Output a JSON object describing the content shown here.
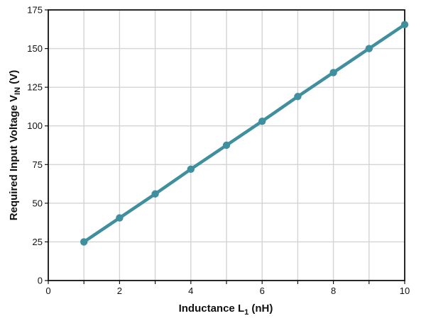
{
  "chart_data": {
    "type": "line",
    "title": "",
    "xlabel": "Inductance L",
    "xlabel_sub": "1",
    "xlabel_unit": " (nH)",
    "ylabel": "Required Input Voltage V",
    "ylabel_sub": "IN",
    "ylabel_unit": " (V)",
    "xlim": [
      0,
      10
    ],
    "ylim": [
      0,
      175
    ],
    "xticks": [
      0,
      2,
      4,
      6,
      8,
      10
    ],
    "yticks": [
      0,
      25,
      50,
      75,
      100,
      125,
      150,
      175
    ],
    "grid": true,
    "series": [
      {
        "color": "#3f8f9f",
        "x": [
          1,
          2,
          3,
          4,
          5,
          6,
          7,
          8,
          9,
          10
        ],
        "y": [
          25,
          40.5,
          56,
          72,
          87.5,
          103,
          119,
          134.5,
          150,
          165.5
        ]
      }
    ]
  }
}
